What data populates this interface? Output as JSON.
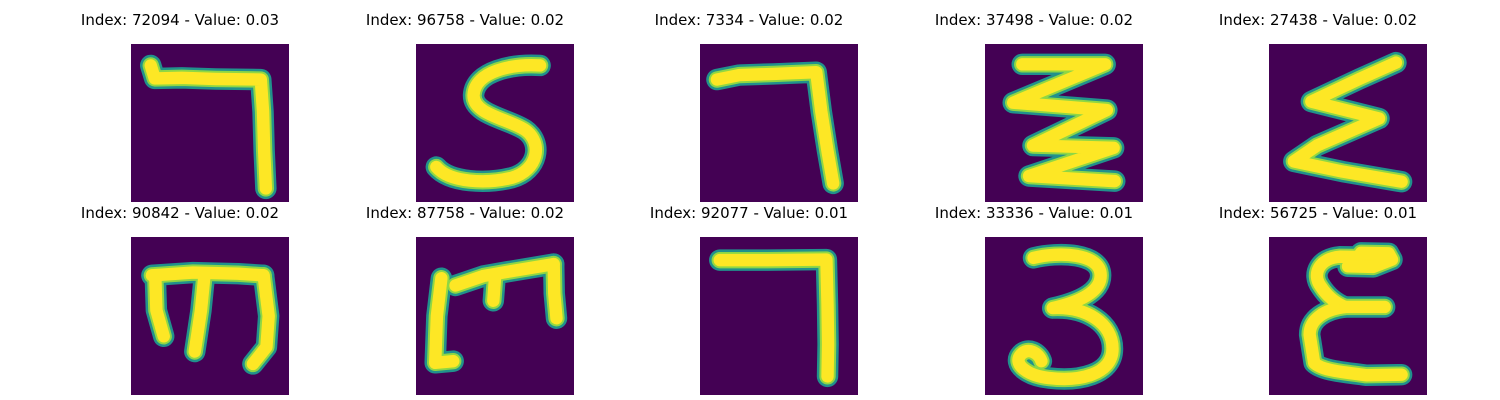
{
  "colors": {
    "background": "#440154",
    "stroke_core": "#fde725",
    "stroke_mid": "#8fd744",
    "stroke_edge": "#21918c"
  },
  "panels": [
    {
      "title": "Index: 72094 - Value: 0.03",
      "index": 72094,
      "value": 0.03
    },
    {
      "title": "Index: 96758 - Value: 0.02",
      "index": 96758,
      "value": 0.02
    },
    {
      "title": "Index: 7334 - Value: 0.02",
      "index": 7334,
      "value": 0.02
    },
    {
      "title": "Index: 37498 - Value: 0.02",
      "index": 37498,
      "value": 0.02
    },
    {
      "title": "Index: 27438 - Value: 0.02",
      "index": 27438,
      "value": 0.02
    },
    {
      "title": "Index: 90842 - Value: 0.02",
      "index": 90842,
      "value": 0.02
    },
    {
      "title": "Index: 87758 - Value: 0.02",
      "index": 87758,
      "value": 0.02
    },
    {
      "title": "Index: 92077 - Value: 0.01",
      "index": 92077,
      "value": 0.01
    },
    {
      "title": "Index: 33336 - Value: 0.01",
      "index": 33336,
      "value": 0.01
    },
    {
      "title": "Index: 56725 - Value: 0.01",
      "index": 56725,
      "value": 0.01
    }
  ]
}
